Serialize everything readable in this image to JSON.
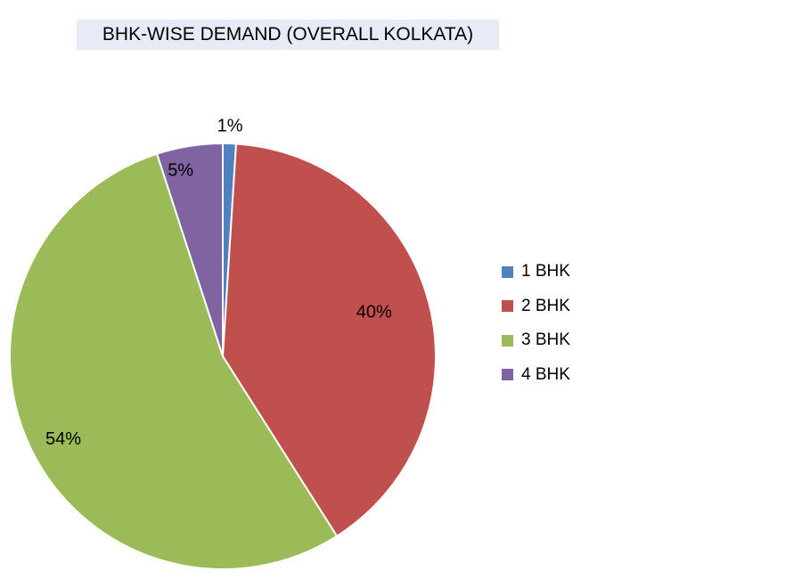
{
  "chart_data": {
    "type": "pie",
    "title": "BHK-WISE DEMAND (OVERALL KOLKATA)",
    "categories": [
      "1 BHK",
      "2 BHK",
      "3 BHK",
      "4 BHK"
    ],
    "values": [
      1,
      40,
      54,
      5
    ],
    "data_labels": [
      "1%",
      "40%",
      "54%",
      "5%"
    ],
    "colors": [
      "#4f81bd",
      "#c0504d",
      "#9bbb59",
      "#8064a2"
    ],
    "legend_position": "right"
  }
}
